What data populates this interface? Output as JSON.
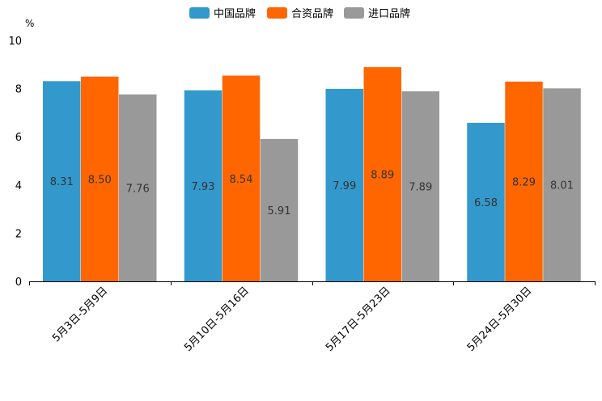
{
  "chart_data": {
    "type": "bar",
    "unit": "%",
    "categories": [
      "5月3日-5月9日",
      "5月10日-5月16日",
      "5月17日-5月23日",
      "5月24日-5月30日"
    ],
    "series": [
      {
        "name": "中国品牌",
        "color": "#3399cc",
        "values": [
          8.31,
          7.93,
          7.99,
          6.58
        ],
        "labels": [
          "8.31",
          "7.93",
          "7.99",
          "6.58"
        ]
      },
      {
        "name": "合资品牌",
        "color": "#ff6600",
        "values": [
          8.5,
          8.54,
          8.89,
          8.29
        ],
        "labels": [
          "8.50",
          "8.54",
          "8.89",
          "8.29"
        ]
      },
      {
        "name": "进口品牌",
        "color": "#999999",
        "values": [
          7.76,
          5.91,
          7.89,
          8.01
        ],
        "labels": [
          "7.76",
          "5.91",
          "7.89",
          "8.01"
        ]
      }
    ],
    "ylim": [
      0,
      10
    ],
    "yticks": [
      "0",
      "2",
      "4",
      "6",
      "8",
      "10"
    ],
    "legend_position": "top-center",
    "grid": false
  }
}
